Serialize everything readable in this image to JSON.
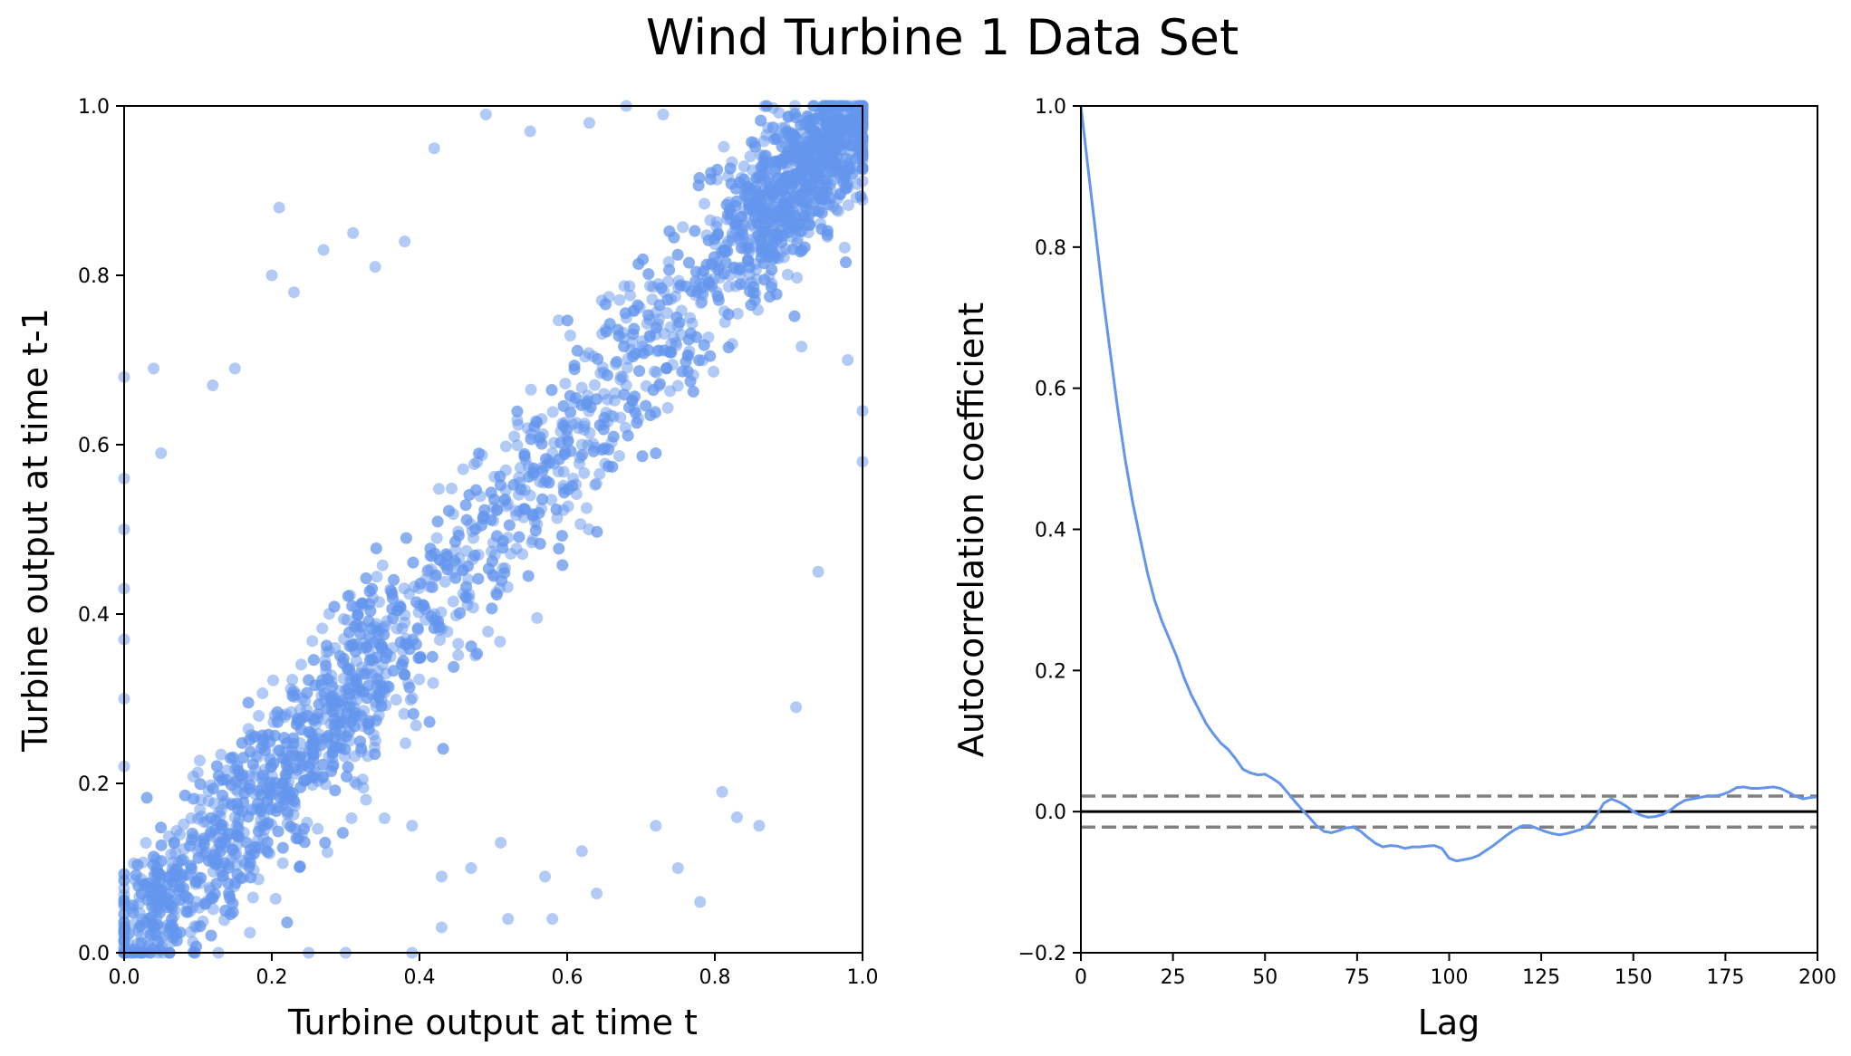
{
  "figure": {
    "title": "Wind Turbine 1 Data Set"
  },
  "chart_data": [
    {
      "type": "scatter",
      "xlabel": "Turbine output at time t",
      "ylabel": "Turbine output at time t-1",
      "xlim": [
        0.0,
        1.0
      ],
      "ylim": [
        0.0,
        1.0
      ],
      "xticks": [
        "0.0",
        "0.2",
        "0.4",
        "0.6",
        "0.8",
        "1.0"
      ],
      "yticks": [
        "0.0",
        "0.2",
        "0.4",
        "0.6",
        "0.8",
        "1.0"
      ],
      "color": "#6495ED",
      "alpha": 0.5,
      "grid": false,
      "series": [
        {
          "points": [
            [
              0.02,
              0.03
            ],
            [
              0.05,
              0.06
            ],
            [
              0.08,
              0.09
            ],
            [
              0.1,
              0.12
            ],
            [
              0.12,
              0.11
            ],
            [
              0.15,
              0.16
            ],
            [
              0.18,
              0.17
            ],
            [
              0.2,
              0.22
            ],
            [
              0.22,
              0.21
            ],
            [
              0.25,
              0.26
            ],
            [
              0.28,
              0.27
            ],
            [
              0.3,
              0.31
            ],
            [
              0.32,
              0.33
            ],
            [
              0.35,
              0.34
            ],
            [
              0.38,
              0.39
            ],
            [
              0.4,
              0.41
            ],
            [
              0.42,
              0.4
            ],
            [
              0.45,
              0.46
            ],
            [
              0.48,
              0.47
            ],
            [
              0.5,
              0.51
            ],
            [
              0.52,
              0.53
            ],
            [
              0.55,
              0.54
            ],
            [
              0.58,
              0.59
            ],
            [
              0.6,
              0.61
            ],
            [
              0.62,
              0.6
            ],
            [
              0.65,
              0.66
            ],
            [
              0.68,
              0.67
            ],
            [
              0.7,
              0.71
            ],
            [
              0.72,
              0.73
            ],
            [
              0.75,
              0.74
            ],
            [
              0.78,
              0.79
            ],
            [
              0.8,
              0.81
            ],
            [
              0.82,
              0.8
            ],
            [
              0.85,
              0.86
            ],
            [
              0.88,
              0.87
            ],
            [
              0.9,
              0.91
            ],
            [
              0.92,
              0.93
            ],
            [
              0.95,
              0.94
            ],
            [
              0.98,
              0.97
            ],
            [
              0.99,
              0.99
            ],
            [
              0.0,
              0.68
            ],
            [
              0.04,
              0.69
            ],
            [
              0.0,
              0.56
            ],
            [
              0.0,
              0.5
            ],
            [
              0.0,
              0.43
            ],
            [
              0.0,
              0.37
            ],
            [
              0.0,
              0.3
            ],
            [
              0.0,
              0.22
            ],
            [
              0.05,
              0.59
            ],
            [
              0.12,
              0.67
            ],
            [
              0.15,
              0.69
            ],
            [
              0.21,
              0.88
            ],
            [
              0.2,
              0.8
            ],
            [
              0.23,
              0.78
            ],
            [
              0.27,
              0.83
            ],
            [
              0.31,
              0.85
            ],
            [
              0.34,
              0.81
            ],
            [
              0.38,
              0.84
            ],
            [
              0.42,
              0.95
            ],
            [
              0.49,
              0.99
            ],
            [
              0.55,
              0.97
            ],
            [
              0.63,
              0.98
            ],
            [
              0.73,
              0.99
            ],
            [
              0.68,
              1.0
            ],
            [
              0.39,
              0.15
            ],
            [
              0.43,
              0.09
            ],
            [
              0.47,
              0.1
            ],
            [
              0.51,
              0.13
            ],
            [
              0.57,
              0.09
            ],
            [
              0.62,
              0.12
            ],
            [
              0.64,
              0.07
            ],
            [
              0.72,
              0.15
            ],
            [
              0.75,
              0.1
            ],
            [
              0.78,
              0.06
            ],
            [
              0.81,
              0.19
            ],
            [
              0.83,
              0.16
            ],
            [
              0.86,
              0.15
            ],
            [
              0.91,
              0.29
            ],
            [
              0.94,
              0.45
            ],
            [
              1.0,
              0.58
            ],
            [
              1.0,
              0.64
            ],
            [
              0.98,
              0.7
            ],
            [
              0.25,
              0.0
            ],
            [
              0.3,
              0.0
            ],
            [
              0.39,
              0.0
            ],
            [
              0.43,
              0.03
            ],
            [
              0.52,
              0.04
            ],
            [
              0.58,
              0.04
            ]
          ]
        }
      ]
    },
    {
      "type": "line",
      "xlabel": "Lag",
      "ylabel": "Autocorrelation coefficient",
      "xlim": [
        0,
        200
      ],
      "ylim": [
        -0.2,
        1.0
      ],
      "xticks": [
        "0",
        "25",
        "50",
        "75",
        "100",
        "125",
        "150",
        "175",
        "200"
      ],
      "yticks": [
        "−0.2",
        "0.0",
        "0.2",
        "0.4",
        "0.6",
        "0.8",
        "1.0"
      ],
      "color": "#6495ED",
      "grid": false,
      "x": [
        0,
        2,
        4,
        6,
        8,
        10,
        12,
        14,
        16,
        18,
        20,
        22,
        24,
        26,
        28,
        30,
        32,
        34,
        36,
        38,
        40,
        42,
        44,
        46,
        48,
        50,
        52,
        54,
        56,
        58,
        60,
        62,
        64,
        66,
        68,
        70,
        72,
        74,
        76,
        78,
        80,
        82,
        84,
        86,
        88,
        90,
        92,
        94,
        96,
        98,
        100,
        102,
        104,
        106,
        108,
        110,
        112,
        114,
        116,
        118,
        120,
        122,
        124,
        126,
        128,
        130,
        132,
        134,
        136,
        138,
        140,
        142,
        144,
        146,
        148,
        150,
        152,
        154,
        156,
        158,
        160,
        162,
        164,
        166,
        168,
        170,
        172,
        174,
        176,
        178,
        180,
        182,
        184,
        186,
        188,
        190,
        192,
        194,
        196,
        198,
        200
      ],
      "y": [
        1.0,
        0.91,
        0.82,
        0.73,
        0.65,
        0.57,
        0.5,
        0.44,
        0.39,
        0.34,
        0.3,
        0.27,
        0.245,
        0.22,
        0.19,
        0.165,
        0.145,
        0.125,
        0.11,
        0.097,
        0.088,
        0.075,
        0.06,
        0.055,
        0.052,
        0.053,
        0.047,
        0.04,
        0.028,
        0.015,
        0.003,
        -0.008,
        -0.02,
        -0.028,
        -0.03,
        -0.027,
        -0.023,
        -0.022,
        -0.028,
        -0.037,
        -0.045,
        -0.05,
        -0.048,
        -0.049,
        -0.052,
        -0.05,
        -0.05,
        -0.049,
        -0.048,
        -0.052,
        -0.066,
        -0.07,
        -0.068,
        -0.066,
        -0.062,
        -0.055,
        -0.048,
        -0.04,
        -0.032,
        -0.025,
        -0.02,
        -0.02,
        -0.024,
        -0.028,
        -0.031,
        -0.033,
        -0.031,
        -0.028,
        -0.025,
        -0.018,
        -0.005,
        0.012,
        0.018,
        0.014,
        0.008,
        0.0,
        -0.005,
        -0.008,
        -0.007,
        -0.004,
        0.002,
        0.01,
        0.016,
        0.018,
        0.02,
        0.022,
        0.022,
        0.024,
        0.028,
        0.034,
        0.035,
        0.033,
        0.033,
        0.034,
        0.035,
        0.033,
        0.028,
        0.022,
        0.018,
        0.02,
        0.021
      ],
      "zero_line": 0.0,
      "confidence_band": [
        0.022,
        -0.022
      ],
      "zero_line_color": "#000000",
      "band_color": "#808080"
    }
  ]
}
